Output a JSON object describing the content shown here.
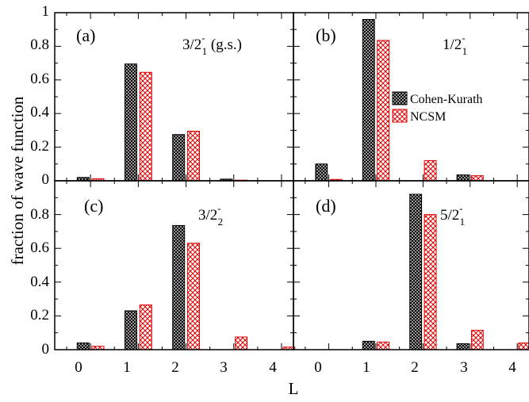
{
  "figure": {
    "ylabel": "fraction of wave function",
    "xlabel": "L",
    "xticks": [
      "0",
      "1",
      "2",
      "3",
      "4"
    ],
    "yticks": [
      "0",
      "0.2",
      "0.4",
      "0.6",
      "0.8",
      "1"
    ],
    "legend": {
      "position": "inside panel (b), right side",
      "entries": [
        {
          "name": "Cohen-Kurath",
          "pattern": "dense black crosshatch",
          "color": "#000000"
        },
        {
          "name": "NCSM",
          "pattern": "red crosshatch",
          "color": "#e00000"
        }
      ]
    }
  },
  "chart_data": [
    {
      "type": "bar",
      "panel": "(a)",
      "state": {
        "j": "3/2",
        "sup": "-",
        "sub": "1",
        "suffix": " (g.s.)"
      },
      "categories": [
        0,
        1,
        2,
        3,
        4
      ],
      "series": [
        {
          "name": "Cohen-Kurath",
          "values": [
            0.02,
            0.695,
            0.275,
            0.01,
            0.0
          ]
        },
        {
          "name": "NCSM",
          "values": [
            0.012,
            0.645,
            0.295,
            0.004,
            0.0
          ]
        }
      ],
      "ylim": [
        0,
        1
      ],
      "xlim": [
        -0.75,
        4.25
      ]
    },
    {
      "type": "bar",
      "panel": "(b)",
      "state": {
        "j": "1/2",
        "sup": "-",
        "sub": "1",
        "suffix": ""
      },
      "categories": [
        0,
        1,
        2,
        3,
        4
      ],
      "series": [
        {
          "name": "Cohen-Kurath",
          "values": [
            0.1,
            0.96,
            0.0,
            0.035,
            0.0
          ]
        },
        {
          "name": "NCSM",
          "values": [
            0.008,
            0.835,
            0.12,
            0.03,
            0.0
          ]
        }
      ],
      "ylim": [
        0,
        1
      ],
      "xlim": [
        -0.75,
        4.25
      ]
    },
    {
      "type": "bar",
      "panel": "(c)",
      "state": {
        "j": "3/2",
        "sup": "-",
        "sub": "2",
        "suffix": ""
      },
      "categories": [
        0,
        1,
        2,
        3,
        4
      ],
      "series": [
        {
          "name": "Cohen-Kurath",
          "values": [
            0.04,
            0.23,
            0.735,
            0.0,
            0.0
          ]
        },
        {
          "name": "NCSM",
          "values": [
            0.02,
            0.265,
            0.63,
            0.075,
            0.015
          ]
        }
      ],
      "ylim": [
        0,
        1
      ],
      "xlim": [
        -0.75,
        4.25
      ]
    },
    {
      "type": "bar",
      "panel": "(d)",
      "state": {
        "j": "5/2",
        "sup": "-",
        "sub": "1",
        "suffix": ""
      },
      "categories": [
        0,
        1,
        2,
        3,
        4
      ],
      "series": [
        {
          "name": "Cohen-Kurath",
          "values": [
            0.0,
            0.05,
            0.92,
            0.035,
            0.0
          ]
        },
        {
          "name": "NCSM",
          "values": [
            0.0,
            0.045,
            0.8,
            0.115,
            0.04
          ]
        }
      ],
      "ylim": [
        0,
        1
      ],
      "xlim": [
        -0.75,
        4.25
      ]
    }
  ]
}
